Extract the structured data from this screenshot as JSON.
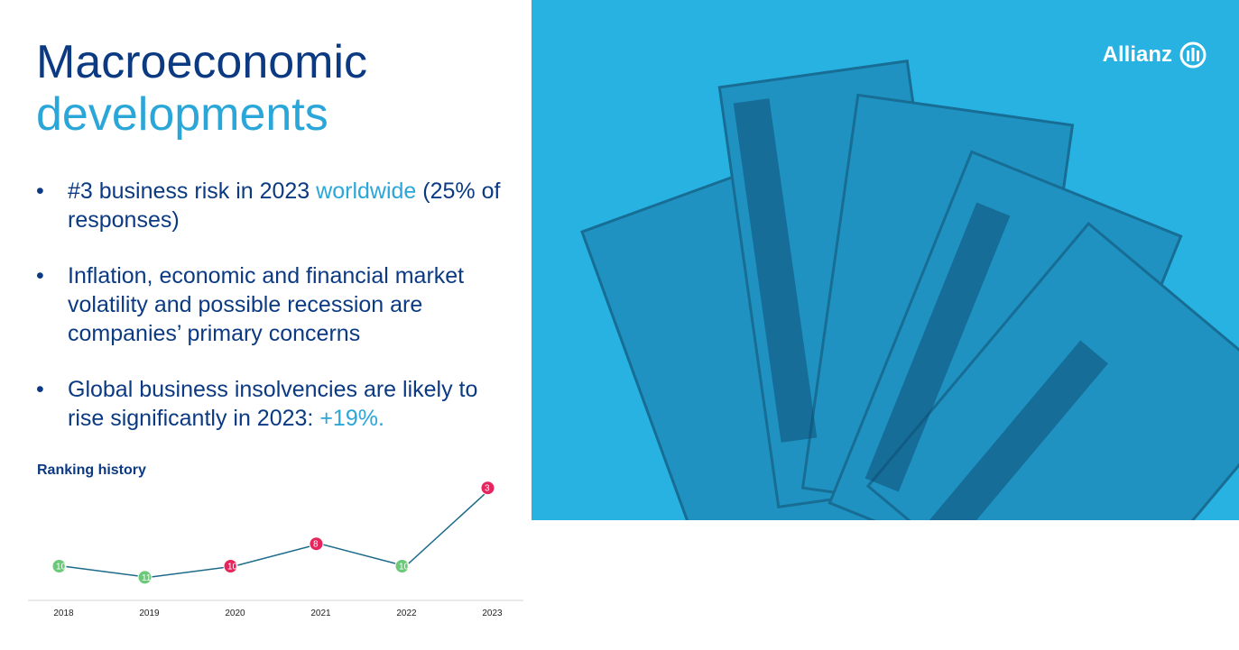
{
  "header": {
    "title_line1": "Macroeconomic",
    "title_line2": "developments",
    "logo": "Allianz"
  },
  "bullets": [
    [
      {
        "text": "#3 business risk in 2023 "
      },
      {
        "text": "worldwide",
        "highlight": true
      },
      {
        "text": " (25% of responses)"
      }
    ],
    [
      {
        "text": "Inflation, economic and financial market volatility and possible recession are companies’ primary concerns"
      }
    ],
    [
      {
        "text": "Global business insolvencies are likely to rise significantly in 2023: "
      },
      {
        "text": "+19%.",
        "highlight": true
      }
    ]
  ],
  "chart_data": {
    "type": "line",
    "title": "Ranking history",
    "categories": [
      "2018",
      "2019",
      "2020",
      "2021",
      "2022",
      "2023"
    ],
    "values": [
      10,
      11,
      10,
      8,
      10,
      3
    ],
    "color": "#1d6b8a",
    "point_colors": [
      "#6cc97a",
      "#6cc97a",
      "#e6245e",
      "#e6245e",
      "#6cc97a",
      "#e6245e"
    ]
  }
}
